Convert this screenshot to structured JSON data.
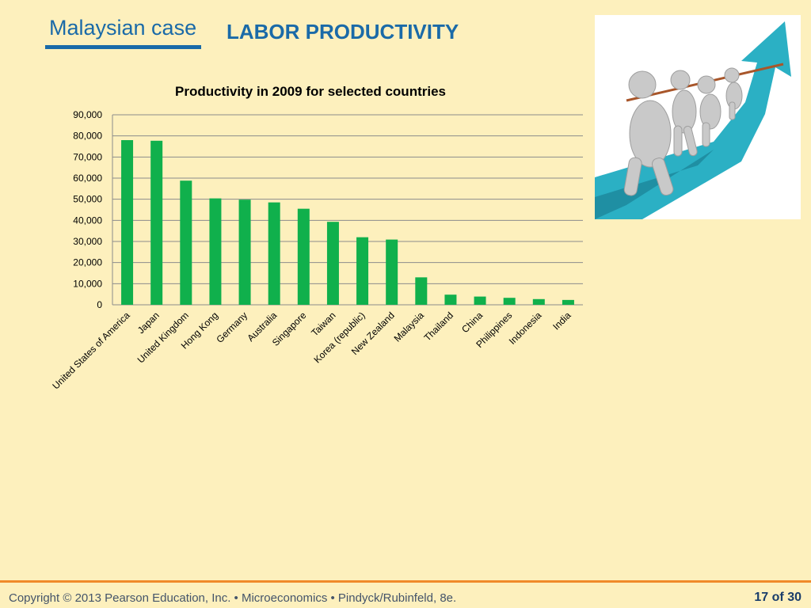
{
  "header": {
    "section_label": "Malaysian case",
    "title": "LABOR PRODUCTIVITY"
  },
  "image": {
    "icon": "tug-of-war-figures-on-rising-arrow-illustration"
  },
  "footer": {
    "copyright": "Copyright © 2013  Pearson Education, Inc. •  Microeconomics  •  Pindyck/Rubinfeld, 8e.",
    "page": "17 of 30"
  },
  "colors": {
    "background": "#fdf0bd",
    "accent_blue": "#1a6aa8",
    "bar_green": "#10b04c",
    "footer_orange": "#f08a2a"
  },
  "chart_data": {
    "type": "bar",
    "title": "Productivity in 2009 for selected countries",
    "xlabel": "",
    "ylabel": "",
    "ylim": [
      0,
      90000
    ],
    "yticks": [
      "0",
      "10,000",
      "20,000",
      "30,000",
      "40,000",
      "50,000",
      "60,000",
      "70,000",
      "80,000",
      "90,000"
    ],
    "grid": true,
    "legend": "none",
    "categories": [
      "United States of America",
      "Japan",
      "United Kingdom",
      "Hong Kong",
      "Germany",
      "Australia",
      "Singapore",
      "Taiwan",
      "Korea (republic)",
      "New Zealand",
      "Malaysia",
      "Thailand",
      "China",
      "Philippines",
      "Indonesia",
      "India"
    ],
    "values": [
      78000,
      77700,
      58800,
      50400,
      49800,
      48500,
      45500,
      39300,
      32000,
      30900,
      13000,
      4800,
      3900,
      3300,
      2700,
      2300
    ]
  }
}
